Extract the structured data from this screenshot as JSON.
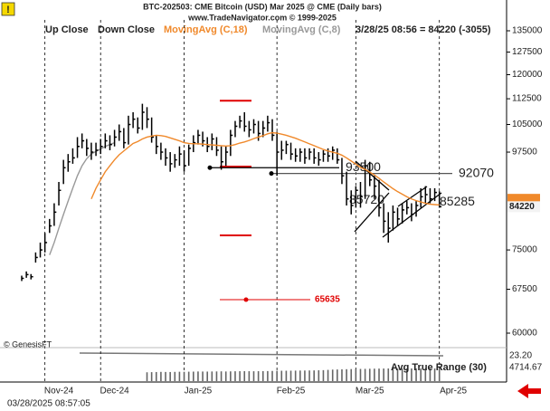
{
  "chart_data": {
    "type": "hlc",
    "title": "BTC-202503:  CME Bitcoin (USD) Mar 2025 @ CME  (Daily bars)",
    "subtitle": "www.TradeNavigator.com © 1999-2025",
    "legend": {
      "up": "Up Close",
      "down": "Down Close"
    },
    "status": "3/28/25 08:56 = 84220 (-3055)",
    "categories": [
      null,
      null,
      null,
      null,
      null,
      null,
      null,
      null,
      "Nov-24",
      null,
      null,
      null,
      null,
      null,
      null,
      null,
      null,
      null,
      null,
      null,
      "Dec-24",
      null,
      null,
      null,
      null,
      null,
      null,
      null,
      null,
      null,
      null,
      null,
      null,
      null,
      null,
      null,
      null,
      null,
      "Jan-25",
      null,
      null,
      null,
      null,
      null,
      null,
      null,
      null,
      null,
      null,
      null,
      null,
      null,
      null,
      null,
      null,
      null,
      null,
      null,
      "Feb-25",
      null,
      null,
      null,
      null,
      null,
      null,
      null,
      null,
      null,
      null,
      null,
      null,
      null,
      null,
      null,
      null,
      "Mar-25",
      null,
      null,
      null,
      null,
      null,
      null,
      null,
      null,
      null,
      null,
      null,
      null,
      null,
      null,
      null,
      null,
      null,
      "Apr-25",
      null,
      null,
      null,
      null,
      null,
      null
    ],
    "bars": {
      "color": "#000000",
      "high": [
        70000,
        70800,
        70300,
        74500,
        76500,
        78500,
        81500,
        85000,
        90000,
        95500,
        97000,
        98500,
        101500,
        102500,
        101000,
        100000,
        100000,
        101000,
        102500,
        102000,
        103500,
        105000,
        104000,
        107500,
        108500,
        107000,
        111000,
        110000,
        107000,
        102000,
        100000,
        98500,
        97500,
        97000,
        99000,
        98000,
        99500,
        102000,
        103500,
        103000,
        101500,
        102500,
        101500,
        99000,
        99000,
        103500,
        106000,
        107500,
        108500,
        106000,
        106500,
        106000,
        106000,
        107500,
        106500,
        103000,
        100500,
        100500,
        100000,
        98500,
        98500,
        98500,
        98500,
        98500,
        97500,
        98000,
        98500,
        99000,
        98500,
        96000,
        92500,
        88000,
        89000,
        90000,
        95500,
        95000,
        91500,
        90500,
        85000,
        83000,
        84500,
        84000,
        85000,
        85500,
        85000,
        85500,
        88500,
        89000,
        88500,
        88500,
        87800,
        null,
        null,
        null,
        null,
        null,
        null,
        null,
        null,
        null
      ],
      "low": [
        69000,
        69600,
        69300,
        72500,
        73500,
        74500,
        78500,
        80000,
        84500,
        89500,
        92500,
        94500,
        96000,
        98500,
        96500,
        95500,
        96500,
        97000,
        98500,
        98000,
        99000,
        100500,
        98500,
        99500,
        104000,
        102500,
        103500,
        104000,
        100000,
        97000,
        95500,
        94000,
        92500,
        93500,
        94000,
        92500,
        94000,
        97500,
        99500,
        99000,
        97500,
        98000,
        96500,
        93000,
        94000,
        96500,
        101500,
        104000,
        103000,
        101500,
        102500,
        100500,
        101500,
        103000,
        100500,
        91500,
        95500,
        97000,
        95500,
        95000,
        95000,
        94500,
        95500,
        94500,
        94000,
        95000,
        95000,
        95500,
        94500,
        89500,
        84500,
        82500,
        84000,
        84000,
        86000,
        89000,
        86000,
        82000,
        78500,
        76500,
        79000,
        80000,
        80500,
        82500,
        81000,
        82000,
        84000,
        85000,
        85000,
        85500,
        84000,
        null,
        null,
        null,
        null,
        null,
        null,
        null,
        null,
        null
      ],
      "close": [
        69500,
        70200,
        69800,
        73500,
        75000,
        76500,
        80000,
        83000,
        88000,
        93500,
        95000,
        96000,
        99000,
        100500,
        98500,
        97500,
        98000,
        99000,
        100500,
        99500,
        101500,
        103000,
        100000,
        105000,
        106500,
        104000,
        108500,
        106500,
        101500,
        99000,
        97500,
        96000,
        94500,
        95500,
        97000,
        94000,
        98500,
        100000,
        102000,
        100500,
        99000,
        101000,
        98000,
        95000,
        97500,
        102000,
        104500,
        106000,
        104500,
        103500,
        105000,
        102500,
        104000,
        105500,
        102000,
        97500,
        98000,
        99500,
        97000,
        96500,
        97500,
        96000,
        97500,
        96000,
        95500,
        97000,
        96500,
        98000,
        95500,
        91500,
        86000,
        84500,
        88000,
        86500,
        94000,
        90500,
        89000,
        84000,
        81000,
        79500,
        83000,
        81500,
        83500,
        84000,
        82500,
        84500,
        86500,
        87000,
        86000,
        87500,
        84220,
        null,
        null,
        null,
        null,
        null,
        null,
        null,
        null,
        null
      ]
    },
    "series": [
      {
        "name": "MovingAvg (C,18)",
        "color": "#f0892b",
        "values": [
          null,
          null,
          null,
          null,
          null,
          null,
          null,
          null,
          null,
          null,
          null,
          null,
          null,
          null,
          null,
          86000,
          88500,
          90500,
          92500,
          94000,
          95500,
          96800,
          97800,
          98800,
          99800,
          100300,
          101000,
          101500,
          101800,
          102000,
          101900,
          101700,
          101300,
          100900,
          100500,
          100000,
          99800,
          99700,
          99700,
          99600,
          99500,
          99400,
          99300,
          99200,
          99100,
          99200,
          99500,
          99900,
          100200,
          100600,
          101100,
          101500,
          101900,
          102400,
          102700,
          102600,
          102300,
          102000,
          101600,
          101200,
          100700,
          100200,
          99700,
          99200,
          98700,
          98200,
          97800,
          97500,
          97200,
          96700,
          96000,
          95200,
          94400,
          93600,
          93100,
          92400,
          91700,
          90900,
          90000,
          89200,
          88400,
          87700,
          87100,
          86500,
          86000,
          85600,
          85300,
          85000,
          84800,
          84700,
          84600,
          null,
          null,
          null,
          null,
          null,
          null,
          null,
          null,
          null
        ]
      },
      {
        "name": "MovingAvg (C,8)",
        "color": "#999999",
        "values": [
          null,
          null,
          null,
          null,
          null,
          null,
          74000,
          76500,
          79500,
          82500,
          85500,
          88500,
          91500,
          94000,
          95800,
          97000,
          97700,
          98300,
          99000,
          99500,
          100000,
          null,
          null,
          null,
          null,
          null,
          null,
          null,
          null,
          null,
          null,
          null,
          null,
          null,
          null,
          null,
          null,
          null,
          null,
          null,
          null,
          null,
          null,
          null,
          null,
          null,
          null,
          null,
          null,
          null,
          null,
          null,
          null,
          null,
          null,
          null,
          null,
          null,
          null,
          null,
          null,
          null,
          null,
          null,
          null,
          null,
          null,
          null,
          null,
          null,
          null,
          null,
          null,
          null,
          null,
          null,
          null,
          null,
          null,
          null,
          null,
          null,
          null,
          null,
          null,
          null,
          null,
          null,
          null,
          null,
          null,
          null,
          null,
          null,
          null,
          null,
          null,
          null,
          null,
          null
        ]
      }
    ],
    "ylim": [
      60000,
      135000
    ],
    "log_y": true,
    "yticks": [
      135000,
      127500,
      120000,
      112500,
      105000,
      97500,
      75000,
      67500,
      60000
    ],
    "levels": [
      93500,
      92070,
      85720,
      85285
    ],
    "red_levels": [
      111900,
      93800,
      78000
    ],
    "red_target": 65635,
    "red_color": "#e00000",
    "atr": {
      "name": "Avg True Range (30)",
      "color": "#666666",
      "line_label": "23.20",
      "values": [
        null,
        null,
        null,
        null,
        null,
        null,
        null,
        null,
        null,
        null,
        null,
        null,
        null,
        null,
        null,
        null,
        null,
        null,
        null,
        null,
        null,
        null,
        null,
        null,
        null,
        null,
        null,
        3300,
        3350,
        3400,
        3450,
        3420,
        3400,
        3450,
        3500,
        3480,
        3520,
        3550,
        3600,
        3580,
        3560,
        3600,
        3620,
        3650,
        3600,
        3640,
        3680,
        3700,
        3720,
        3700,
        3690,
        3710,
        3730,
        3750,
        3800,
        3850,
        3870,
        3880,
        3900,
        3920,
        3950,
        3960,
        3980,
        4000,
        4050,
        4100,
        4200,
        4300,
        4350,
        4400,
        4450,
        4500,
        4600,
        4550,
        4580,
        4620,
        4650,
        4680,
        4700,
        4720,
        4700,
        4690,
        4710,
        4720,
        4730,
        4720,
        4710,
        4700,
        4705,
        4710,
        4714.67,
        null,
        null,
        null,
        null,
        null,
        null,
        null,
        null,
        null
      ]
    },
    "watermark": "© GenesisFT",
    "timestamp": "03/28/2025 08:57:05"
  }
}
